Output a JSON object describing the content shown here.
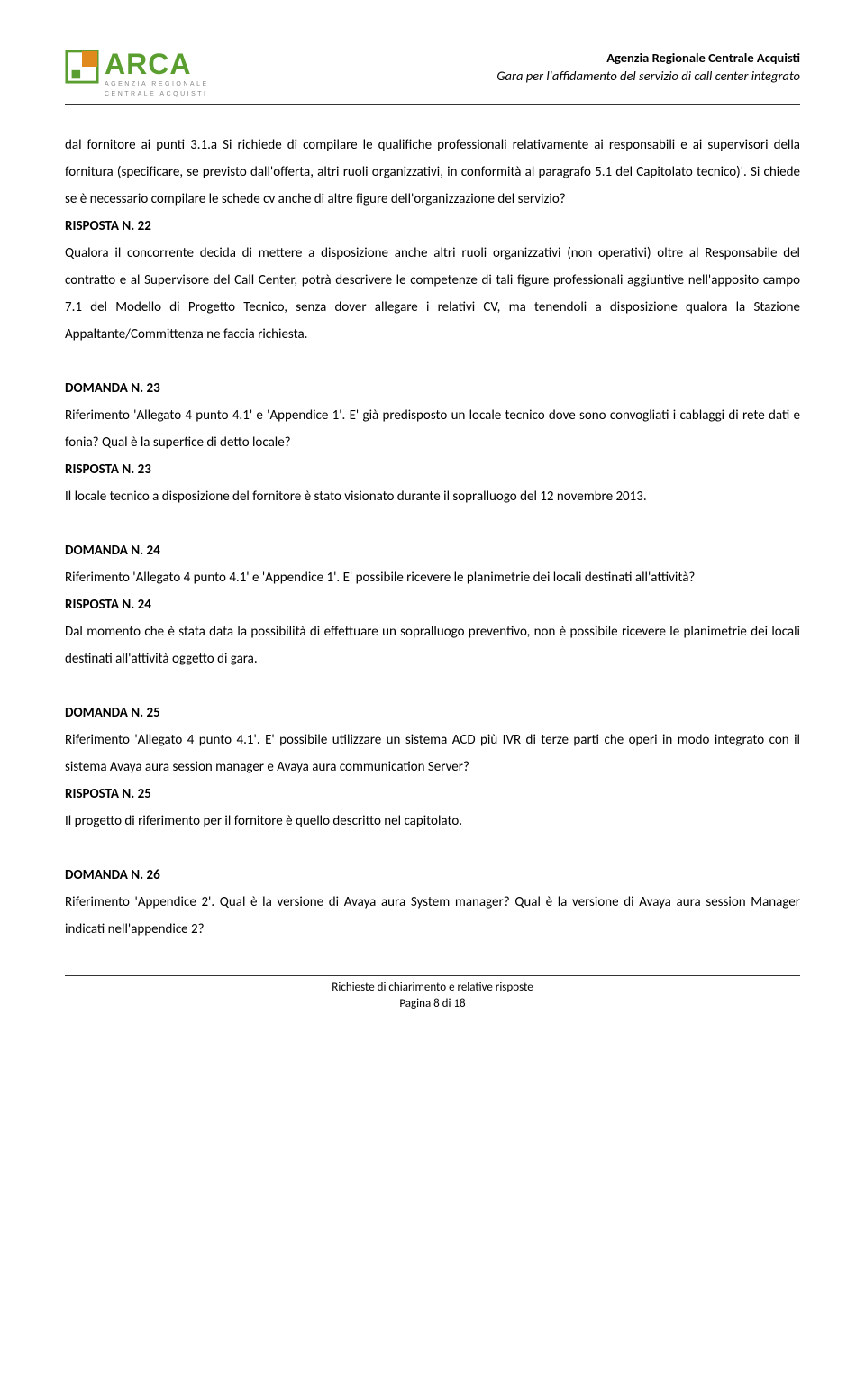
{
  "header": {
    "logo_main": "ARCA",
    "logo_sub1": "AGENZIA REGIONALE",
    "logo_sub2": "CENTRALE ACQUISTI",
    "right_line1": "Agenzia Regionale Centrale Acquisti",
    "right_line2": "Gara per l'affidamento del servizio di call center integrato"
  },
  "colors": {
    "brand_green": "#5a9e2f",
    "brand_orange": "#e08a1e",
    "text": "#000000",
    "grey": "#888888",
    "rule": "#333333"
  },
  "sections": [
    {
      "paragraphs": [
        {
          "bold": false,
          "text": "dal fornitore ai punti 3.1.a Si richiede di compilare le qualifiche professionali relativamente ai responsabili e ai supervisori della fornitura (specificare, se previsto dall'offerta, altri ruoli organizzativi, in conformità al paragrafo 5.1 del Capitolato tecnico)'. Si chiede se è necessario compilare le schede cv anche di altre figure dell'organizzazione del servizio?"
        },
        {
          "bold": true,
          "text": "RISPOSTA N. 22"
        },
        {
          "bold": false,
          "text": "Qualora il concorrente decida di mettere a disposizione anche altri ruoli organizzativi (non operativi) oltre al Responsabile del contratto e al Supervisore del Call Center, potrà descrivere le competenze di tali figure professionali aggiuntive nell'apposito campo 7.1 del Modello di Progetto Tecnico, senza dover allegare i relativi CV, ma tenendoli a disposizione qualora la Stazione Appaltante/Committenza ne faccia richiesta."
        }
      ]
    },
    {
      "paragraphs": [
        {
          "bold": true,
          "text": "DOMANDA N. 23"
        },
        {
          "bold": false,
          "text": "Riferimento 'Allegato 4 punto 4.1' e 'Appendice 1'. E' già predisposto un locale tecnico dove sono convogliati i cablaggi di rete dati e fonia? Qual è la superfice di detto locale?"
        },
        {
          "bold": true,
          "text": "RISPOSTA N. 23"
        },
        {
          "bold": false,
          "text": "Il locale tecnico a disposizione del fornitore è stato visionato durante il sopralluogo del 12 novembre 2013."
        }
      ]
    },
    {
      "paragraphs": [
        {
          "bold": true,
          "text": "DOMANDA N. 24"
        },
        {
          "bold": false,
          "text": "Riferimento 'Allegato 4 punto 4.1' e 'Appendice 1'. E' possibile ricevere le planimetrie dei locali destinati all'attività?"
        },
        {
          "bold": true,
          "text": "RISPOSTA N. 24"
        },
        {
          "bold": false,
          "text": "Dal momento che è stata data la possibilità di effettuare un sopralluogo preventivo, non è possibile ricevere le planimetrie dei locali destinati all'attività oggetto di gara."
        }
      ]
    },
    {
      "paragraphs": [
        {
          "bold": true,
          "text": "DOMANDA N. 25"
        },
        {
          "bold": false,
          "text": "Riferimento 'Allegato 4 punto 4.1'. E' possibile utilizzare un sistema ACD più IVR di terze parti che operi in modo integrato con il sistema Avaya aura session manager e Avaya aura communication Server?"
        },
        {
          "bold": true,
          "text": "RISPOSTA N. 25"
        },
        {
          "bold": false,
          "text": "Il progetto di riferimento per il fornitore è quello descritto nel capitolato."
        }
      ]
    },
    {
      "paragraphs": [
        {
          "bold": true,
          "text": "DOMANDA N. 26"
        },
        {
          "bold": false,
          "text": "Riferimento 'Appendice 2'. Qual è la versione di Avaya aura System manager? Qual è la versione di Avaya aura session Manager indicati nell'appendice 2?"
        }
      ]
    }
  ],
  "footer": {
    "line1": "Richieste di chiarimento e relative risposte",
    "line2": "Pagina 8 di 18"
  }
}
